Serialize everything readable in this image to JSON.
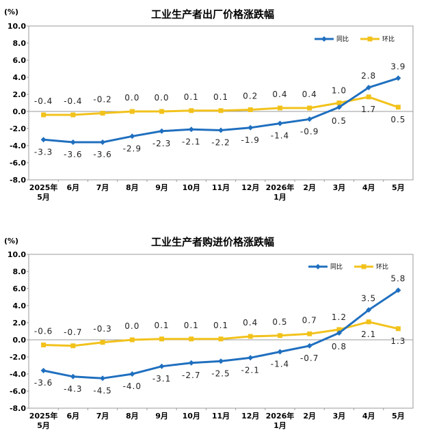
{
  "chart_data": [
    {
      "type": "line",
      "title": "工业生产者出厂价格涨跌幅",
      "unit": "(%)",
      "categories": [
        [
          "2025年",
          "5月"
        ],
        [
          "6月"
        ],
        [
          "7月"
        ],
        [
          "8月"
        ],
        [
          "9月"
        ],
        [
          "10月"
        ],
        [
          "11月"
        ],
        [
          "12月"
        ],
        [
          "2026年",
          "1月"
        ],
        [
          "2月"
        ],
        [
          "3月"
        ],
        [
          "4月"
        ],
        [
          "5月"
        ]
      ],
      "ylim": [
        -8.0,
        10.0
      ],
      "yticks": [
        "10.0",
        "8.0",
        "6.0",
        "4.0",
        "2.0",
        "0.0",
        "-2.0",
        "-4.0",
        "-6.0",
        "-8.0"
      ],
      "legend_position": "top-right",
      "series": [
        {
          "name": "同比",
          "color": "#1f6fbf",
          "values": [
            -3.3,
            -3.6,
            -3.6,
            -2.9,
            -2.3,
            -2.1,
            -2.2,
            -1.9,
            -1.4,
            -0.9,
            0.5,
            2.8,
            3.9
          ],
          "labels": [
            "-3.3",
            "-3.6",
            "-3.6",
            "-2.9",
            "-2.3",
            "-2.1",
            "-2.2",
            "-1.9",
            "-1.4",
            "-0.9",
            "0.5",
            "2.8",
            "3.9"
          ]
        },
        {
          "name": "环比",
          "color": "#f2c21b",
          "values": [
            -0.4,
            -0.4,
            -0.2,
            0.0,
            0.0,
            0.1,
            0.1,
            0.2,
            0.4,
            0.4,
            1.0,
            1.7,
            0.5
          ],
          "labels": [
            "-0.4",
            "-0.4",
            "-0.2",
            "0.0",
            "0.0",
            "0.1",
            "0.1",
            "0.2",
            "0.4",
            "0.4",
            "1.0",
            "1.7",
            "0.5"
          ]
        }
      ]
    },
    {
      "type": "line",
      "title": "工业生产者购进价格涨跌幅",
      "unit": "(%)",
      "categories": [
        [
          "2025年",
          "5月"
        ],
        [
          "6月"
        ],
        [
          "7月"
        ],
        [
          "8月"
        ],
        [
          "9月"
        ],
        [
          "10月"
        ],
        [
          "11月"
        ],
        [
          "12月"
        ],
        [
          "2026年",
          "1月"
        ],
        [
          "2月"
        ],
        [
          "3月"
        ],
        [
          "4月"
        ],
        [
          "5月"
        ]
      ],
      "ylim": [
        -8.0,
        10.0
      ],
      "yticks": [
        "10.0",
        "8.0",
        "6.0",
        "4.0",
        "2.0",
        "0.0",
        "-2.0",
        "-4.0",
        "-6.0",
        "-8.0"
      ],
      "legend_position": "top-right",
      "series": [
        {
          "name": "同比",
          "color": "#1f6fbf",
          "values": [
            -3.6,
            -4.3,
            -4.5,
            -4.0,
            -3.1,
            -2.7,
            -2.5,
            -2.1,
            -1.4,
            -0.7,
            0.8,
            3.5,
            5.8
          ],
          "labels": [
            "-3.6",
            "-4.3",
            "-4.5",
            "-4.0",
            "-3.1",
            "-2.7",
            "-2.5",
            "-2.1",
            "-1.4",
            "-0.7",
            "0.8",
            "3.5",
            "5.8"
          ]
        },
        {
          "name": "环比",
          "color": "#f2c21b",
          "values": [
            -0.6,
            -0.7,
            -0.3,
            0.0,
            0.1,
            0.1,
            0.1,
            0.4,
            0.5,
            0.7,
            1.2,
            2.1,
            1.3
          ],
          "labels": [
            "-0.6",
            "-0.7",
            "-0.3",
            "0.0",
            "0.1",
            "0.1",
            "0.1",
            "0.4",
            "0.5",
            "0.7",
            "1.2",
            "2.1",
            "1.3"
          ]
        }
      ]
    }
  ]
}
